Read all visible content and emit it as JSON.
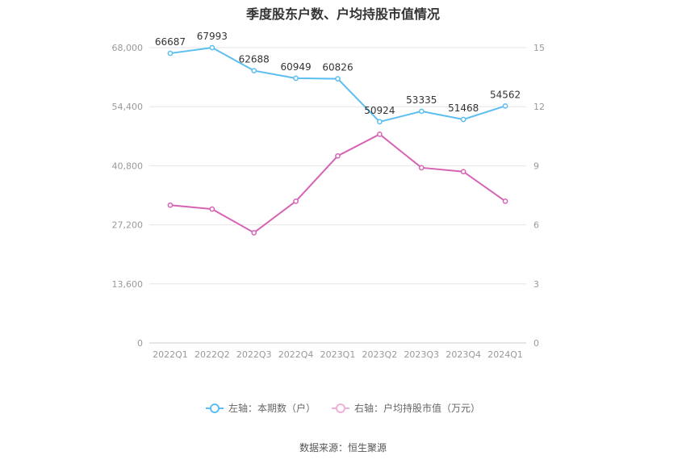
{
  "chart_data": {
    "type": "line",
    "title": "季度股东户数、户均持股市值情况",
    "categories": [
      "2022Q1",
      "2022Q2",
      "2022Q3",
      "2022Q4",
      "2023Q1",
      "2023Q2",
      "2023Q3",
      "2023Q4",
      "2024Q1"
    ],
    "left_axis": {
      "ticks": [
        "0",
        "13,600",
        "27,200",
        "40,800",
        "54,400",
        "68,000"
      ],
      "ylim": [
        0,
        68000
      ]
    },
    "right_axis": {
      "ticks": [
        "0",
        "3",
        "6",
        "9",
        "12",
        "15"
      ],
      "ylim": [
        0,
        15
      ]
    },
    "grid": true,
    "legend_position": "bottom",
    "series": [
      {
        "name": "左轴：本期数（户）",
        "axis": "left",
        "color": "#5bbdf0",
        "values": [
          66687,
          67993,
          62688,
          60949,
          60826,
          50924,
          53335,
          51468,
          54562
        ],
        "labels": [
          "66687",
          "67993",
          "62688",
          "60949",
          "60826",
          "50924",
          "53335",
          "51468",
          "54562"
        ]
      },
      {
        "name": "右轴：户均持股市值（万元）",
        "axis": "right",
        "color": "#d664b4",
        "values": [
          7.0,
          6.8,
          5.6,
          7.2,
          9.5,
          10.6,
          8.9,
          8.7,
          7.2
        ]
      }
    ],
    "source": "数据来源：恒生聚源"
  }
}
